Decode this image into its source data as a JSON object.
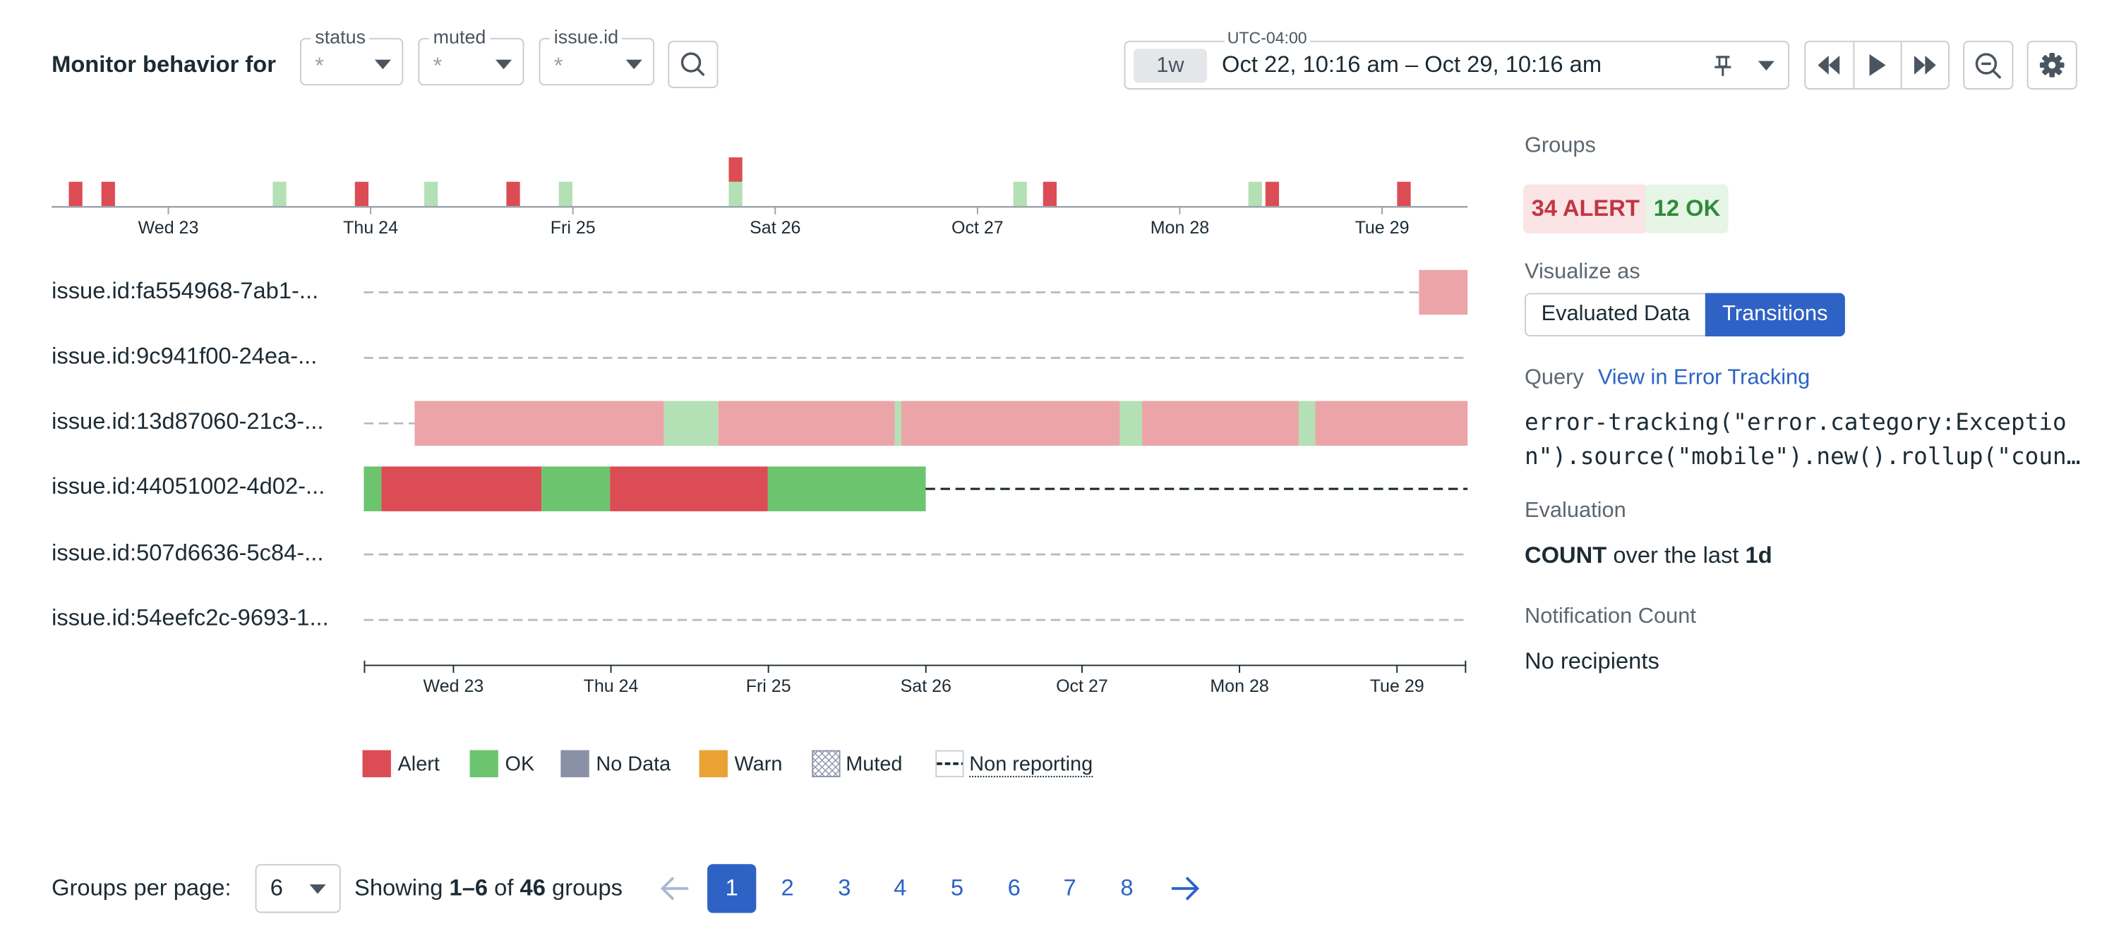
{
  "header": {
    "title": "Monitor behavior for",
    "filters": [
      {
        "label": "status",
        "value": "*"
      },
      {
        "label": "muted",
        "value": "*"
      },
      {
        "label": "issue.id",
        "value": "*"
      }
    ],
    "timezone": "UTC-04:00",
    "time_preset": "1w",
    "time_range": "Oct 22, 10:16 am – Oct 29, 10:16 am"
  },
  "overview_ticks": [
    "Wed 23",
    "Thu 24",
    "Fri 25",
    "Sat 26",
    "Oct 27",
    "Mon 28",
    "Tue 29"
  ],
  "timeline_ticks": [
    "Wed 23",
    "Thu 24",
    "Fri 25",
    "Sat 26",
    "Oct 27",
    "Mon 28",
    "Tue 29"
  ],
  "colors": {
    "alert": "#dc4c54",
    "ok": "#6cc46f",
    "alert_light": "#eba5a9",
    "ok_light": "#b3e0b4",
    "no_data": "#8a91a7",
    "warn": "#eaa234",
    "accent": "#2e62c5"
  },
  "rows": [
    {
      "label": "issue.id:fa554968-7ab1-...",
      "segments": [
        {
          "status": "non_reporting_light",
          "start": 0,
          "end": 0.956
        },
        {
          "status": "alert_light",
          "start": 0.956,
          "end": 1
        }
      ]
    },
    {
      "label": "issue.id:9c941f00-24ea-...",
      "segments": [
        {
          "status": "non_reporting_light",
          "start": 0,
          "end": 1
        }
      ]
    },
    {
      "label": "issue.id:13d87060-21c3-...",
      "segments": [
        {
          "status": "non_reporting_light",
          "start": 0,
          "end": 0.046
        },
        {
          "status": "alert_light",
          "start": 0.046,
          "end": 0.272
        },
        {
          "status": "ok_light",
          "start": 0.272,
          "end": 0.321
        },
        {
          "status": "alert_light",
          "start": 0.321,
          "end": 0.481
        },
        {
          "status": "ok_light",
          "start": 0.481,
          "end": 0.487
        },
        {
          "status": "alert_light",
          "start": 0.487,
          "end": 0.685
        },
        {
          "status": "ok_light",
          "start": 0.685,
          "end": 0.705
        },
        {
          "status": "alert_light",
          "start": 0.705,
          "end": 0.847
        },
        {
          "status": "ok_light",
          "start": 0.847,
          "end": 0.862
        },
        {
          "status": "alert_light",
          "start": 0.862,
          "end": 1
        }
      ]
    },
    {
      "label": "issue.id:44051002-4d02-...",
      "segments": [
        {
          "status": "ok",
          "start": 0,
          "end": 0.016
        },
        {
          "status": "alert",
          "start": 0.016,
          "end": 0.161
        },
        {
          "status": "ok",
          "start": 0.161,
          "end": 0.223
        },
        {
          "status": "alert",
          "start": 0.223,
          "end": 0.366
        },
        {
          "status": "ok",
          "start": 0.366,
          "end": 0.509
        },
        {
          "status": "non_reporting",
          "start": 0.509,
          "end": 1
        }
      ]
    },
    {
      "label": "issue.id:507d6636-5c84-...",
      "segments": [
        {
          "status": "non_reporting_light",
          "start": 0,
          "end": 1
        }
      ]
    },
    {
      "label": "issue.id:54eefc2c-9693-1...",
      "segments": [
        {
          "status": "non_reporting_light",
          "start": 0,
          "end": 1
        }
      ]
    }
  ],
  "overview_bars": [
    {
      "pos": 0.017,
      "stack": [
        "alert"
      ]
    },
    {
      "pos": 0.04,
      "stack": [
        "alert"
      ]
    },
    {
      "pos": 0.161,
      "stack": [
        "ok_light"
      ]
    },
    {
      "pos": 0.219,
      "stack": [
        "alert"
      ]
    },
    {
      "pos": 0.268,
      "stack": [
        "ok_light"
      ]
    },
    {
      "pos": 0.326,
      "stack": [
        "alert"
      ]
    },
    {
      "pos": 0.363,
      "stack": [
        "ok_light"
      ]
    },
    {
      "pos": 0.483,
      "stack": [
        "ok_light",
        "alert"
      ]
    },
    {
      "pos": 0.684,
      "stack": [
        "ok_light"
      ]
    },
    {
      "pos": 0.705,
      "stack": [
        "alert"
      ]
    },
    {
      "pos": 0.85,
      "stack": [
        "ok_light"
      ]
    },
    {
      "pos": 0.862,
      "stack": [
        "alert"
      ]
    },
    {
      "pos": 0.955,
      "stack": [
        "alert"
      ]
    }
  ],
  "legend": [
    {
      "key": "alert",
      "label": "Alert"
    },
    {
      "key": "ok",
      "label": "OK"
    },
    {
      "key": "no_data",
      "label": "No Data"
    },
    {
      "key": "warn",
      "label": "Warn"
    },
    {
      "key": "muted",
      "label": "Muted"
    },
    {
      "key": "non_reporting",
      "label": "Non reporting"
    }
  ],
  "side_panel": {
    "groups_label": "Groups",
    "alert_badge": "34 ALERT",
    "ok_badge": "12 OK",
    "visualize_label": "Visualize as",
    "visualize_options": [
      "Evaluated Data",
      "Transitions"
    ],
    "visualize_selected": "Transitions",
    "query_label": "Query",
    "query_link": "View in Error Tracking",
    "query_line1": "error-tracking(\"error.category:Exceptio",
    "query_line2": "n\").source(\"mobile\").new().rollup(\"coun…",
    "evaluation_label": "Evaluation",
    "evaluation_metric": "COUNT",
    "evaluation_middle": " over the last ",
    "evaluation_window": "1d",
    "notification_label": "Notification Count",
    "notification_value": "No recipients"
  },
  "pagination": {
    "per_page_label": "Groups per page:",
    "per_page_value": "6",
    "showing_prefix": "Showing ",
    "showing_range": "1–6",
    "showing_of": " of ",
    "showing_total": "46",
    "showing_suffix": " groups",
    "pages": [
      "1",
      "2",
      "3",
      "4",
      "5",
      "6",
      "7",
      "8"
    ],
    "current_page": "1"
  }
}
